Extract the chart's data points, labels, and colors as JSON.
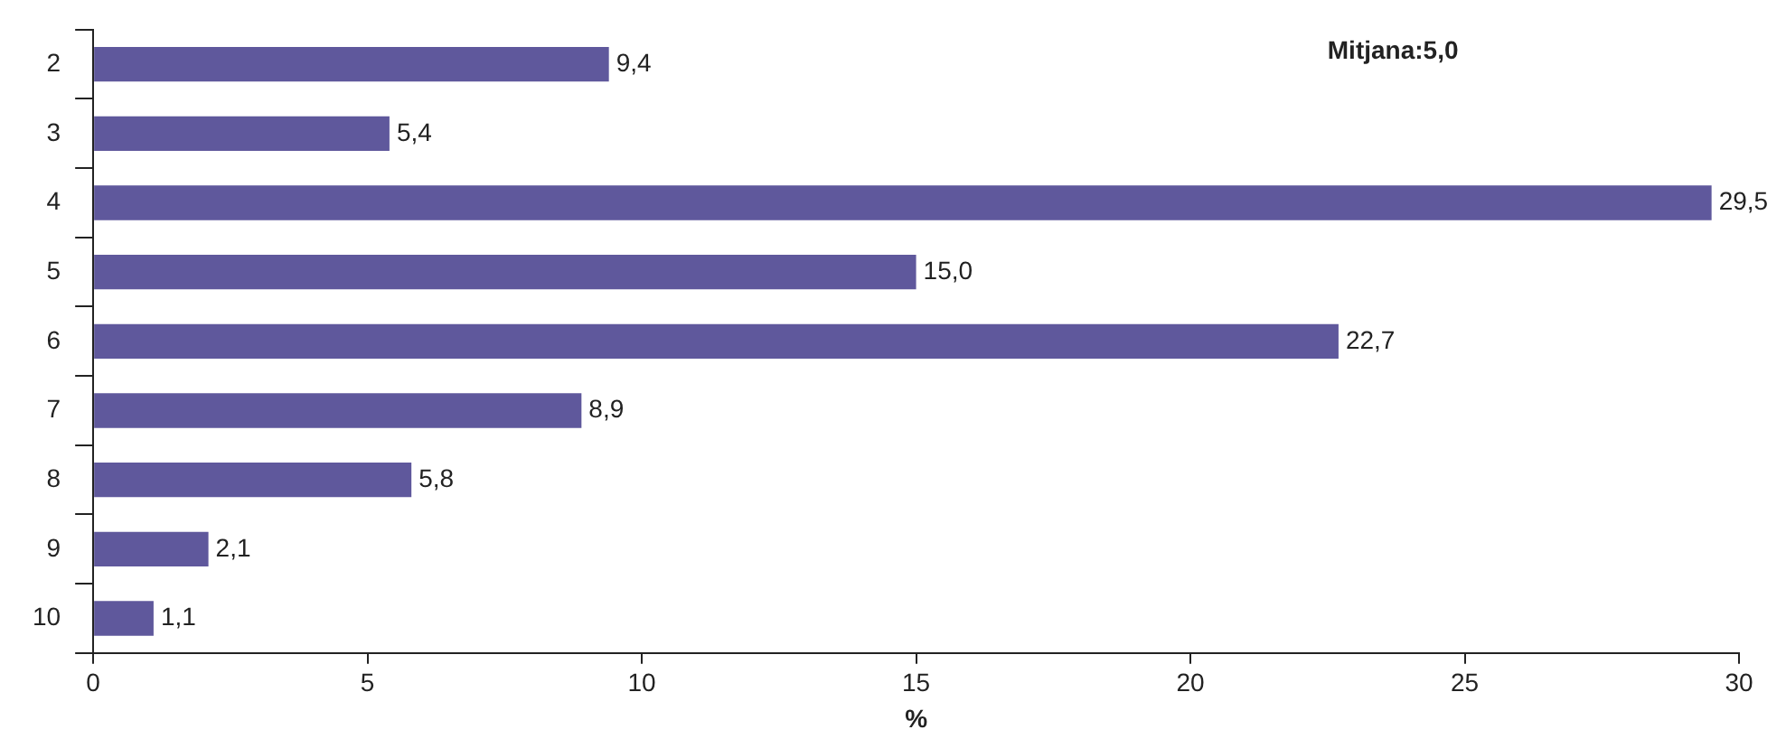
{
  "chart_data": {
    "type": "bar",
    "orientation": "horizontal",
    "categories": [
      "2",
      "3",
      "4",
      "5",
      "6",
      "7",
      "8",
      "9",
      "10"
    ],
    "values": [
      9.4,
      5.4,
      29.5,
      15.0,
      22.7,
      8.9,
      5.8,
      2.1,
      1.1
    ],
    "value_labels": [
      "9,4",
      "5,4",
      "29,5",
      "15,0",
      "22,7",
      "8,9",
      "5,8",
      "2,1",
      "1,1"
    ],
    "color": "#5f589c",
    "xlim": [
      0,
      30
    ],
    "xticks": [
      0,
      5,
      10,
      15,
      20,
      25,
      30
    ],
    "xlabel": "%",
    "annotations": [
      "Mitjana:5,0"
    ],
    "grid": false,
    "legend": false
  }
}
